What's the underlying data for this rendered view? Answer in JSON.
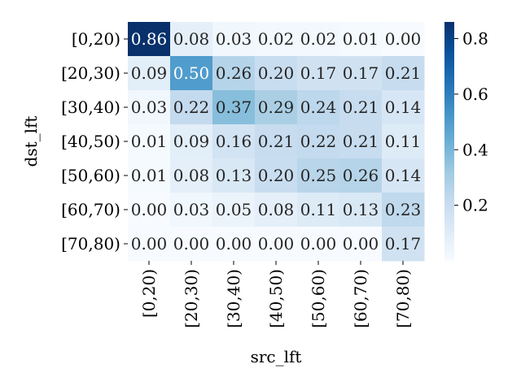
{
  "chart_data": {
    "type": "heatmap",
    "title": "",
    "xlabel": "src_lft",
    "ylabel": "dst_lft",
    "x_categories": [
      "[0,20)",
      "[20,30)",
      "[30,40)",
      "[40,50)",
      "[50,60)",
      "[60,70)",
      "[70,80)"
    ],
    "y_categories": [
      "[0,20)",
      "[20,30)",
      "[30,40)",
      "[40,50)",
      "[50,60)",
      "[60,70)",
      "[70,80)"
    ],
    "values": [
      [
        0.86,
        0.08,
        0.03,
        0.02,
        0.02,
        0.01,
        0.0
      ],
      [
        0.09,
        0.5,
        0.26,
        0.2,
        0.17,
        0.17,
        0.21
      ],
      [
        0.03,
        0.22,
        0.37,
        0.29,
        0.24,
        0.21,
        0.14
      ],
      [
        0.01,
        0.09,
        0.16,
        0.21,
        0.22,
        0.21,
        0.11
      ],
      [
        0.01,
        0.08,
        0.13,
        0.2,
        0.25,
        0.26,
        0.14
      ],
      [
        0.0,
        0.03,
        0.05,
        0.08,
        0.11,
        0.13,
        0.23
      ],
      [
        0.0,
        0.0,
        0.0,
        0.0,
        0.0,
        0.0,
        0.17
      ]
    ],
    "value_labels": [
      [
        "0.86",
        "0.08",
        "0.03",
        "0.02",
        "0.02",
        "0.01",
        "0.00"
      ],
      [
        "0.09",
        "0.50",
        "0.26",
        "0.20",
        "0.17",
        "0.17",
        "0.21"
      ],
      [
        "0.03",
        "0.22",
        "0.37",
        "0.29",
        "0.24",
        "0.21",
        "0.14"
      ],
      [
        "0.01",
        "0.09",
        "0.16",
        "0.21",
        "0.22",
        "0.21",
        "0.11"
      ],
      [
        "0.01",
        "0.08",
        "0.13",
        "0.20",
        "0.25",
        "0.26",
        "0.14"
      ],
      [
        "0.00",
        "0.03",
        "0.05",
        "0.08",
        "0.11",
        "0.13",
        "0.23"
      ],
      [
        "0.00",
        "0.00",
        "0.00",
        "0.00",
        "0.00",
        "0.00",
        "0.17"
      ]
    ],
    "colormap": "Blues",
    "color_range": [
      0.0,
      0.86
    ],
    "colorbar_ticks": [
      0.2,
      0.4,
      0.6,
      0.8
    ],
    "colorbar_tick_labels": [
      "0.2",
      "0.4",
      "0.6",
      "0.8"
    ],
    "grid": false,
    "legend": "colorbar-right"
  }
}
